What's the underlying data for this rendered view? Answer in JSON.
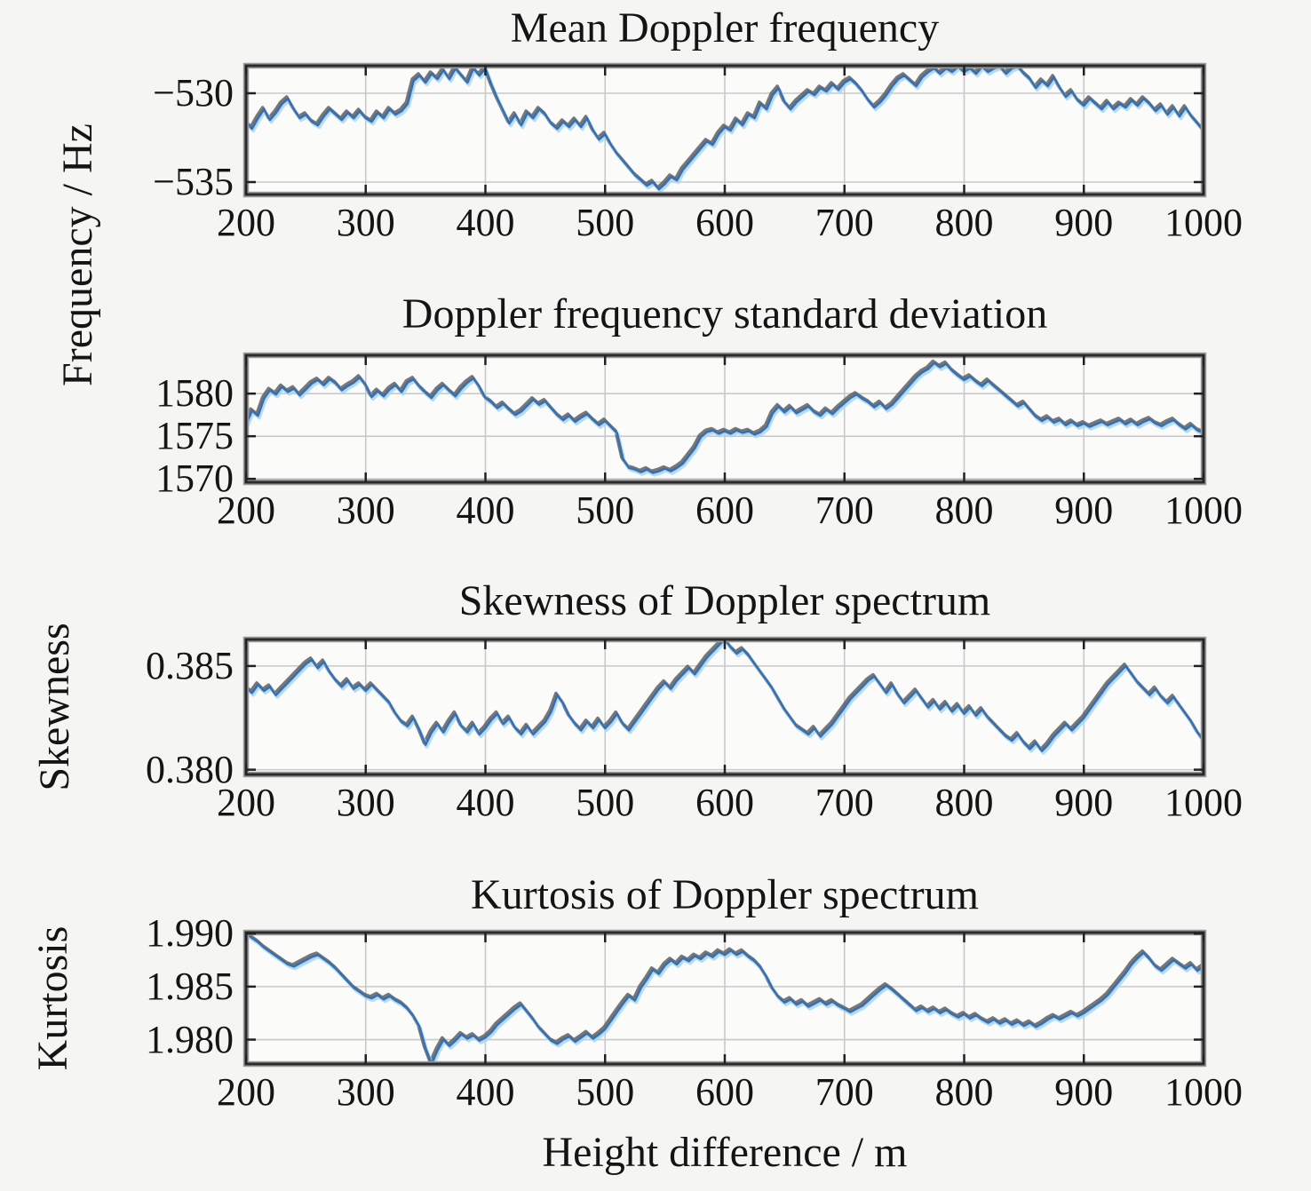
{
  "figure": {
    "xlabel": "Height difference / m",
    "background": "#f5f5f3",
    "plot_background": "#fbfbfa",
    "colors": {
      "line_main": "#3a6fae",
      "line_shadow": "#5f5f5f",
      "line_highlight": "#a8daf0",
      "line_accent": "#7b6fc4",
      "frame": "#2b2b2b",
      "frame_halo": "#9a9a9a",
      "grid": "#c9c9c9",
      "tick": "#222222"
    }
  },
  "chart_data": [
    {
      "type": "line",
      "title": "Mean Doppler frequency",
      "ylabel": "Frequency / Hz",
      "xlabel": "",
      "xlim": [
        200,
        1000
      ],
      "ylim": [
        -535.7,
        -528.45
      ],
      "xticks": [
        200,
        300,
        400,
        500,
        600,
        700,
        800,
        900,
        1000
      ],
      "yticks": [
        {
          "label": "−530",
          "value": -530
        },
        {
          "label": "−535",
          "value": -535
        }
      ],
      "grid": true,
      "legend": "none",
      "x_start": 200,
      "x_step": 5,
      "values": [
        -531.6,
        -532.0,
        -531.4,
        -530.9,
        -531.5,
        -531.1,
        -530.6,
        -530.3,
        -530.9,
        -531.4,
        -531.2,
        -531.6,
        -531.8,
        -531.3,
        -530.9,
        -531.2,
        -531.5,
        -531.1,
        -531.4,
        -531.0,
        -531.4,
        -531.6,
        -531.1,
        -531.4,
        -530.9,
        -531.2,
        -531.0,
        -530.6,
        -529.3,
        -529.0,
        -529.4,
        -528.9,
        -529.2,
        -528.7,
        -529.2,
        -528.6,
        -529.0,
        -529.4,
        -528.6,
        -529.0,
        -528.6,
        -529.5,
        -530.3,
        -531.0,
        -531.7,
        -531.2,
        -531.8,
        -531.1,
        -531.4,
        -530.9,
        -531.2,
        -531.7,
        -532.0,
        -531.6,
        -531.9,
        -531.5,
        -531.9,
        -531.4,
        -532.1,
        -532.6,
        -532.3,
        -532.9,
        -533.4,
        -533.8,
        -534.2,
        -534.6,
        -534.9,
        -535.2,
        -535.0,
        -535.4,
        -535.1,
        -534.7,
        -534.9,
        -534.3,
        -533.9,
        -533.5,
        -533.1,
        -532.7,
        -532.9,
        -532.3,
        -531.9,
        -532.1,
        -531.5,
        -531.8,
        -531.2,
        -531.4,
        -530.6,
        -530.9,
        -530.1,
        -529.7,
        -530.5,
        -530.9,
        -530.5,
        -530.2,
        -529.9,
        -530.1,
        -529.7,
        -529.9,
        -529.5,
        -529.8,
        -529.4,
        -529.2,
        -529.5,
        -529.9,
        -530.4,
        -530.8,
        -530.5,
        -530.1,
        -529.6,
        -529.2,
        -529.0,
        -529.3,
        -529.6,
        -529.1,
        -528.8,
        -528.6,
        -528.9,
        -528.6,
        -528.8,
        -528.5,
        -528.8,
        -528.6,
        -528.9,
        -528.5,
        -528.8,
        -528.6,
        -528.5,
        -528.9,
        -528.6,
        -528.5,
        -528.9,
        -529.2,
        -529.7,
        -529.3,
        -529.6,
        -529.1,
        -529.7,
        -530.2,
        -529.9,
        -530.4,
        -530.7,
        -530.3,
        -530.6,
        -530.9,
        -530.5,
        -530.9,
        -530.6,
        -530.8,
        -530.4,
        -530.7,
        -530.3,
        -530.6,
        -531.0,
        -530.7,
        -531.2,
        -530.8,
        -531.3,
        -530.8,
        -531.3,
        -531.7,
        -532.1
      ]
    },
    {
      "type": "line",
      "title": "Doppler frequency standard deviation",
      "ylabel": "",
      "xlabel": "",
      "xlim": [
        200,
        1000
      ],
      "ylim": [
        1569.6,
        1584.5
      ],
      "xticks": [
        200,
        300,
        400,
        500,
        600,
        700,
        800,
        900,
        1000
      ],
      "yticks": [
        {
          "label": "1580",
          "value": 1580
        },
        {
          "label": "1575",
          "value": 1575
        },
        {
          "label": "1570",
          "value": 1570
        }
      ],
      "grid": true,
      "legend": "none",
      "x_start": 200,
      "x_step": 5,
      "values": [
        1576.4,
        1578.0,
        1577.4,
        1579.4,
        1580.4,
        1579.9,
        1580.8,
        1580.2,
        1580.6,
        1579.8,
        1580.5,
        1581.2,
        1581.6,
        1581.0,
        1581.7,
        1581.2,
        1580.4,
        1580.9,
        1581.3,
        1581.9,
        1581.0,
        1579.6,
        1580.3,
        1579.7,
        1580.5,
        1581.0,
        1580.2,
        1581.3,
        1581.7,
        1580.8,
        1580.1,
        1579.5,
        1580.4,
        1581.0,
        1580.3,
        1579.7,
        1580.6,
        1581.3,
        1581.8,
        1580.8,
        1579.5,
        1579.0,
        1578.3,
        1578.8,
        1578.1,
        1577.5,
        1577.9,
        1578.6,
        1579.3,
        1578.7,
        1579.1,
        1578.3,
        1577.5,
        1576.9,
        1577.4,
        1576.7,
        1577.2,
        1577.6,
        1576.9,
        1576.3,
        1576.8,
        1576.1,
        1575.4,
        1572.3,
        1571.3,
        1571.1,
        1570.8,
        1571.1,
        1570.7,
        1570.9,
        1571.2,
        1570.9,
        1571.3,
        1571.8,
        1572.7,
        1573.6,
        1574.9,
        1575.5,
        1575.7,
        1575.3,
        1575.6,
        1575.3,
        1575.7,
        1575.4,
        1575.6,
        1575.2,
        1575.5,
        1576.1,
        1577.7,
        1578.5,
        1577.8,
        1578.4,
        1577.7,
        1578.1,
        1578.5,
        1577.8,
        1577.4,
        1578.1,
        1577.6,
        1578.3,
        1578.9,
        1579.5,
        1579.9,
        1579.4,
        1579.0,
        1578.4,
        1578.9,
        1578.2,
        1578.7,
        1579.5,
        1580.3,
        1581.1,
        1581.9,
        1582.5,
        1582.9,
        1583.6,
        1583.1,
        1583.5,
        1582.7,
        1582.1,
        1581.6,
        1582.0,
        1581.4,
        1580.9,
        1581.5,
        1580.9,
        1580.3,
        1579.7,
        1579.1,
        1578.5,
        1578.9,
        1578.1,
        1577.3,
        1576.8,
        1577.2,
        1576.6,
        1576.9,
        1576.3,
        1576.7,
        1576.2,
        1576.5,
        1576.1,
        1576.4,
        1576.7,
        1576.3,
        1576.6,
        1576.9,
        1576.4,
        1576.8,
        1576.3,
        1576.7,
        1577.0,
        1576.5,
        1576.2,
        1576.6,
        1576.9,
        1576.3,
        1575.8,
        1576.3,
        1575.7,
        1575.4
      ]
    },
    {
      "type": "line",
      "title": "Skewness of Doppler spectrum",
      "ylabel": "Skewness",
      "xlabel": "",
      "xlim": [
        200,
        1000
      ],
      "ylim": [
        0.37977,
        0.38628
      ],
      "xticks": [
        200,
        300,
        400,
        500,
        600,
        700,
        800,
        900,
        1000
      ],
      "yticks": [
        {
          "label": "0.385",
          "value": 0.385
        },
        {
          "label": "0.380",
          "value": 0.38
        }
      ],
      "grid": true,
      "legend": "none",
      "x_start": 200,
      "x_step": 5,
      "values": [
        0.384,
        0.3837,
        0.3841,
        0.3838,
        0.384,
        0.3836,
        0.3839,
        0.3842,
        0.3845,
        0.3848,
        0.3851,
        0.3853,
        0.3849,
        0.3852,
        0.3847,
        0.3843,
        0.384,
        0.3843,
        0.3839,
        0.3841,
        0.3838,
        0.3841,
        0.3838,
        0.3835,
        0.3832,
        0.3827,
        0.3823,
        0.3821,
        0.3825,
        0.3819,
        0.3812,
        0.3818,
        0.3822,
        0.3818,
        0.3823,
        0.3827,
        0.3821,
        0.3818,
        0.3822,
        0.3817,
        0.382,
        0.3824,
        0.3827,
        0.3822,
        0.3825,
        0.382,
        0.3817,
        0.3821,
        0.3817,
        0.382,
        0.3823,
        0.3828,
        0.3836,
        0.3832,
        0.3826,
        0.3822,
        0.3819,
        0.3823,
        0.382,
        0.3824,
        0.382,
        0.3823,
        0.3827,
        0.3822,
        0.3819,
        0.3823,
        0.3827,
        0.3831,
        0.3835,
        0.3839,
        0.3842,
        0.3839,
        0.3843,
        0.3846,
        0.3849,
        0.3846,
        0.385,
        0.3854,
        0.3857,
        0.386,
        0.3863,
        0.3859,
        0.3856,
        0.3858,
        0.3855,
        0.3851,
        0.3847,
        0.3843,
        0.3839,
        0.3834,
        0.3829,
        0.3825,
        0.3821,
        0.3819,
        0.3817,
        0.382,
        0.3816,
        0.3819,
        0.3822,
        0.3826,
        0.383,
        0.3834,
        0.3837,
        0.384,
        0.3843,
        0.3845,
        0.3841,
        0.3837,
        0.3841,
        0.3836,
        0.3832,
        0.3835,
        0.3838,
        0.3834,
        0.383,
        0.3833,
        0.3829,
        0.3832,
        0.3828,
        0.3831,
        0.3827,
        0.383,
        0.3826,
        0.3829,
        0.3825,
        0.3822,
        0.3819,
        0.3816,
        0.3814,
        0.3817,
        0.3813,
        0.381,
        0.3813,
        0.3809,
        0.3812,
        0.3816,
        0.3819,
        0.3822,
        0.3819,
        0.3822,
        0.3825,
        0.3829,
        0.3833,
        0.3837,
        0.3841,
        0.3844,
        0.3847,
        0.385,
        0.3846,
        0.3842,
        0.3839,
        0.3836,
        0.3839,
        0.3835,
        0.3832,
        0.3835,
        0.3831,
        0.3827,
        0.3823,
        0.3818,
        0.3814
      ]
    },
    {
      "type": "line",
      "title": "Kurtosis of Doppler spectrum",
      "ylabel": "Kurtosis",
      "xlabel": "Height difference / m",
      "xlim": [
        200,
        1000
      ],
      "ylim": [
        1.9777,
        1.9901
      ],
      "xticks": [
        200,
        300,
        400,
        500,
        600,
        700,
        800,
        900,
        1000
      ],
      "yticks": [
        {
          "label": "1.990",
          "value": 1.99
        },
        {
          "label": "1.985",
          "value": 1.985
        },
        {
          "label": "1.980",
          "value": 1.98
        }
      ],
      "grid": true,
      "legend": "none",
      "x_start": 200,
      "x_step": 5,
      "values": [
        1.99,
        1.9896,
        1.9892,
        1.9887,
        1.9883,
        1.9879,
        1.9875,
        1.9871,
        1.9869,
        1.9872,
        1.9875,
        1.9878,
        1.988,
        1.9876,
        1.9872,
        1.9867,
        1.9861,
        1.9855,
        1.9849,
        1.9845,
        1.9841,
        1.9839,
        1.9842,
        1.9838,
        1.9841,
        1.9837,
        1.9834,
        1.9829,
        1.9822,
        1.9812,
        1.9792,
        1.9777,
        1.979,
        1.98,
        1.9794,
        1.9799,
        1.9805,
        1.9801,
        1.9804,
        1.9799,
        1.9802,
        1.9807,
        1.9814,
        1.9819,
        1.9824,
        1.9829,
        1.9833,
        1.9826,
        1.9819,
        1.9811,
        1.9805,
        1.9799,
        1.9796,
        1.98,
        1.9803,
        1.9798,
        1.9802,
        1.9806,
        1.9801,
        1.9805,
        1.981,
        1.9818,
        1.9826,
        1.9834,
        1.9841,
        1.9837,
        1.9849,
        1.9857,
        1.9866,
        1.9862,
        1.987,
        1.9875,
        1.9871,
        1.9877,
        1.9874,
        1.9879,
        1.9876,
        1.9881,
        1.9878,
        1.9883,
        1.988,
        1.9884,
        1.988,
        1.9883,
        1.9878,
        1.9874,
        1.9868,
        1.9859,
        1.9848,
        1.984,
        1.9835,
        1.9838,
        1.9833,
        1.9836,
        1.9831,
        1.9834,
        1.9837,
        1.9833,
        1.9836,
        1.9832,
        1.9829,
        1.9826,
        1.9829,
        1.9832,
        1.9837,
        1.9842,
        1.9847,
        1.9851,
        1.9847,
        1.9842,
        1.9837,
        1.9832,
        1.9827,
        1.983,
        1.9826,
        1.9829,
        1.9825,
        1.9828,
        1.9824,
        1.9821,
        1.9824,
        1.982,
        1.9823,
        1.9819,
        1.9816,
        1.9819,
        1.9815,
        1.9818,
        1.9814,
        1.9817,
        1.9813,
        1.9816,
        1.9812,
        1.9815,
        1.9819,
        1.9822,
        1.9819,
        1.9822,
        1.9825,
        1.9822,
        1.9825,
        1.9829,
        1.9833,
        1.9837,
        1.9842,
        1.9849,
        1.9856,
        1.9863,
        1.9871,
        1.9877,
        1.9882,
        1.9876,
        1.9869,
        1.9865,
        1.987,
        1.9875,
        1.9871,
        1.9867,
        1.9871,
        1.9865,
        1.9869
      ]
    }
  ]
}
